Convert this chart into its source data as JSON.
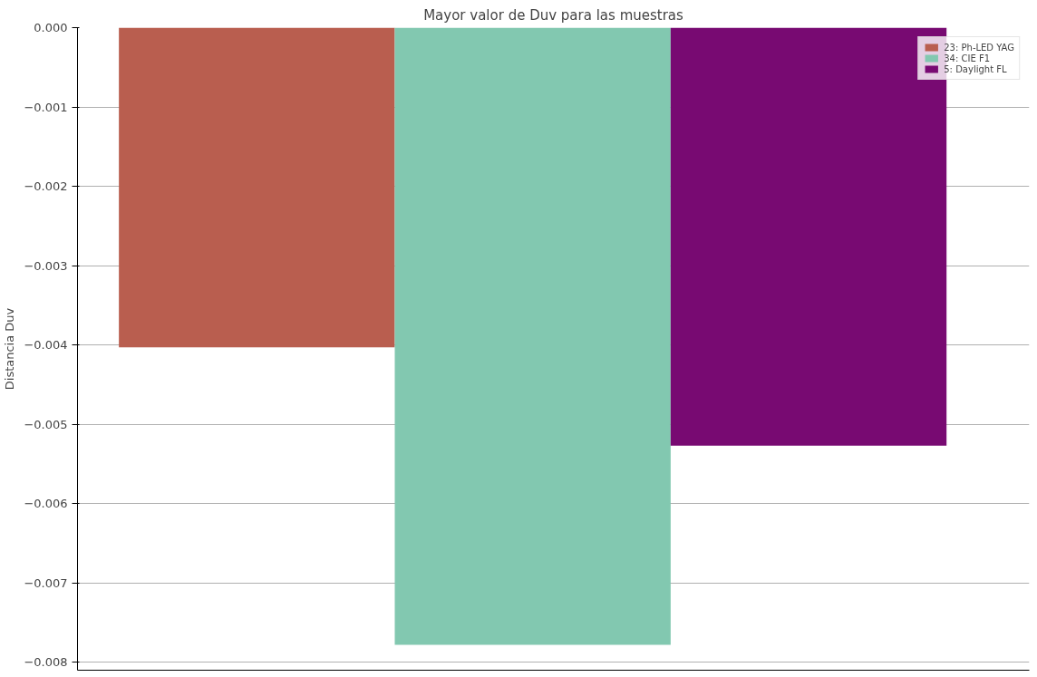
{
  "chart_data": {
    "type": "bar",
    "title": "Mayor valor de Duv para las muestras",
    "ylabel": "Distancia Duv",
    "categories": [
      null,
      null,
      null
    ],
    "series": [
      {
        "name": "23: Ph-LED YAG",
        "color": "#b95e4f",
        "values": [
          -0.00403,
          null,
          null
        ]
      },
      {
        "name": "34: CIE F1",
        "color": "#82c8b0",
        "values": [
          null,
          -0.00778,
          null
        ]
      },
      {
        "name": "5: Daylight FL",
        "color": "#780a72",
        "values": [
          null,
          null,
          -0.00527
        ]
      }
    ],
    "ylim": [
      -0.0081,
      0
    ],
    "yticks": [
      {
        "value": 0,
        "label": "0.000"
      },
      {
        "value": -0.001,
        "label": "−0.001"
      },
      {
        "value": -0.002,
        "label": "−0.002"
      },
      {
        "value": -0.003,
        "label": "−0.003"
      },
      {
        "value": -0.004,
        "label": "−0.004"
      },
      {
        "value": -0.005,
        "label": "−0.005"
      },
      {
        "value": -0.006,
        "label": "−0.006"
      },
      {
        "value": -0.007,
        "label": "−0.007"
      },
      {
        "value": -0.008,
        "label": "−0.008"
      }
    ],
    "grid": "y",
    "legend": "top right",
    "tick_labels": "y"
  }
}
